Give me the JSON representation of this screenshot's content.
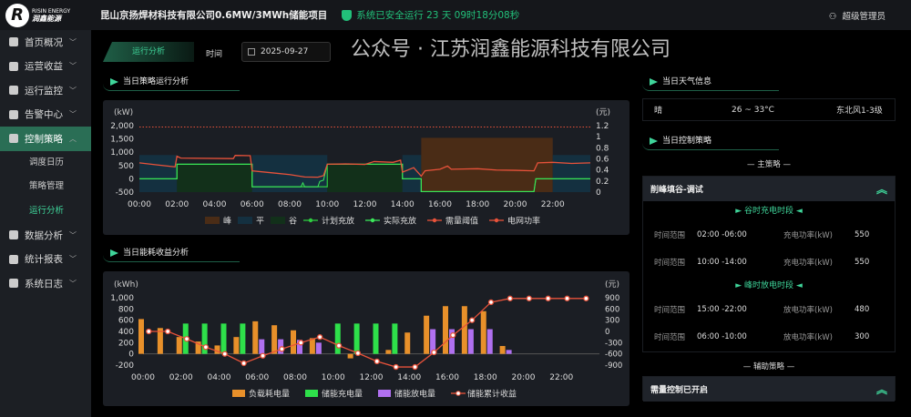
{
  "header": {
    "logo_text": "RISIN ENERGY",
    "logo_cn": "润鑫能源",
    "project": "昆山京扬焊材科技有限公司0.6MW/3MWh储能项目",
    "status": "系统已安全运行 23 天 09时18分08秒",
    "user": "超级管理员"
  },
  "sidebar": {
    "items": [
      {
        "label": "首页概况",
        "icon": "home-icon"
      },
      {
        "label": "运营收益",
        "icon": "money-bag-icon"
      },
      {
        "label": "运行监控",
        "icon": "monitor-icon"
      },
      {
        "label": "告警中心",
        "icon": "bell-icon"
      },
      {
        "label": "控制策略",
        "icon": "wave-icon",
        "active": true,
        "children": [
          {
            "label": "调度日历"
          },
          {
            "label": "策略管理"
          },
          {
            "label": "运行分析",
            "active": true
          }
        ]
      },
      {
        "label": "数据分析",
        "icon": "chart-icon"
      },
      {
        "label": "统计报表",
        "icon": "report-icon"
      },
      {
        "label": "系统日志",
        "icon": "log-icon"
      }
    ]
  },
  "toolbar": {
    "tab": "运行分析",
    "time_label": "时间",
    "date": "2025-09-27"
  },
  "sections": {
    "strategy": "当日策略运行分析",
    "energy": "当日能耗收益分析",
    "weather": "当日天气信息",
    "control": "当日控制策略"
  },
  "weather": {
    "condition": "晴",
    "temp": "26 ~ 33°C",
    "wind": "东北风1-3级"
  },
  "control": {
    "main_label": "— 主策略 —",
    "strategy_name": "削峰填谷-调试",
    "valley_title": "► 谷时充电时段 ◄",
    "peak_title": "► 峰时放电时段 ◄",
    "valley_rows": [
      {
        "l": "时间范围",
        "v": "02:00 -06:00",
        "l2": "充电功率(kW)",
        "v2": "550"
      },
      {
        "l": "时间范围",
        "v": "10:00 -14:00",
        "l2": "充电功率(kW)",
        "v2": "550"
      }
    ],
    "peak_rows": [
      {
        "l": "时间范围",
        "v": "15:00 -22:00",
        "l2": "放电功率(kW)",
        "v2": "480"
      },
      {
        "l": "时间范围",
        "v": "06:00 -10:00",
        "l2": "放电功率(kW)",
        "v2": "300"
      }
    ],
    "aux_label": "— 辅助策略 —",
    "aux_name": "需量控制已开启"
  },
  "watermark": "公众号 · 江苏润鑫能源科技有限公司",
  "colors": {
    "accent": "#3fd59a",
    "peak": "#4a2c16",
    "flat": "#143040",
    "valley": "#12301a",
    "grid": "#e8523a",
    "charge": "#2ecc40",
    "load": "#e8902a",
    "store_charge": "#2ee04a",
    "store_discharge": "#b070f0"
  },
  "chart_data": [
    {
      "type": "line",
      "ylabel": "(kW)",
      "y2label": "(元)",
      "ylim": [
        -500,
        2000
      ],
      "yticks": [
        "2,000",
        "1,500",
        "1,000",
        "500",
        "0",
        "-500"
      ],
      "y2lim": [
        0,
        1.2
      ],
      "y2ticks": [
        "1.2",
        "1",
        "0.8",
        "0.6",
        "0.4",
        "0.2",
        "0"
      ],
      "xticks": [
        "00:00",
        "02:00",
        "04:00",
        "06:00",
        "08:00",
        "10:00",
        "12:00",
        "14:00",
        "16:00",
        "18:00",
        "20:00",
        "22:00"
      ],
      "legend": [
        "峰",
        "平",
        "谷",
        "计划充放",
        "实际充放",
        "需量阈值",
        "电网功率"
      ],
      "price_bands": [
        {
          "type": "平",
          "from": 0,
          "to": 2,
          "price": 0.67
        },
        {
          "type": "谷",
          "from": 2,
          "to": 6,
          "price": 0.5
        },
        {
          "type": "平",
          "from": 6,
          "to": 10,
          "price": 0.67
        },
        {
          "type": "谷",
          "from": 10,
          "to": 14,
          "price": 0.5
        },
        {
          "type": "平",
          "from": 14,
          "to": 15,
          "price": 0.67
        },
        {
          "type": "峰",
          "from": 15,
          "to": 22,
          "price": 0.98
        },
        {
          "type": "平",
          "from": 22,
          "to": 24,
          "price": 0.67
        }
      ],
      "demand_threshold": 1950,
      "plan": [
        [
          0,
          0
        ],
        [
          2,
          0
        ],
        [
          2,
          550
        ],
        [
          6,
          550
        ],
        [
          6,
          -300
        ],
        [
          10,
          -300
        ],
        [
          10,
          550
        ],
        [
          14,
          550
        ],
        [
          14,
          0
        ],
        [
          15,
          0
        ],
        [
          15,
          -480
        ],
        [
          21,
          -480
        ],
        [
          21.1,
          0
        ],
        [
          24,
          0
        ]
      ],
      "actual": [
        [
          0,
          0
        ],
        [
          2,
          0
        ],
        [
          2,
          550
        ],
        [
          6,
          550
        ],
        [
          6,
          -300
        ],
        [
          8.6,
          -300
        ],
        [
          8.7,
          -150
        ],
        [
          8.8,
          -300
        ],
        [
          9.5,
          -300
        ],
        [
          9.6,
          -100
        ],
        [
          9.8,
          -50
        ],
        [
          10,
          550
        ],
        [
          14,
          550
        ],
        [
          14,
          0
        ],
        [
          15,
          0
        ],
        [
          15,
          -480
        ],
        [
          21,
          -480
        ],
        [
          21.1,
          0
        ],
        [
          24,
          0
        ]
      ],
      "grid_power": [
        [
          0,
          600
        ],
        [
          1,
          520
        ],
        [
          1.9,
          450
        ],
        [
          2,
          850
        ],
        [
          2.2,
          780
        ],
        [
          5,
          760
        ],
        [
          5.1,
          880
        ],
        [
          5.9,
          870
        ],
        [
          6,
          300
        ],
        [
          7,
          230
        ],
        [
          8,
          160
        ],
        [
          8.8,
          70
        ],
        [
          9.5,
          60
        ],
        [
          9.8,
          120
        ],
        [
          10,
          550
        ],
        [
          11,
          560
        ],
        [
          12,
          540
        ],
        [
          12.5,
          650
        ],
        [
          13.5,
          620
        ],
        [
          13.9,
          700
        ],
        [
          14,
          250
        ],
        [
          14.6,
          420
        ],
        [
          15,
          100
        ],
        [
          15.2,
          300
        ],
        [
          16,
          360
        ],
        [
          16.4,
          480
        ],
        [
          16.6,
          360
        ],
        [
          18,
          380
        ],
        [
          19,
          330
        ],
        [
          20,
          320
        ],
        [
          21,
          300
        ],
        [
          21.2,
          600
        ],
        [
          22,
          620
        ],
        [
          23,
          580
        ],
        [
          24,
          600
        ]
      ]
    },
    {
      "type": "bar",
      "ylabel": "(kWh)",
      "y2label": "(元)",
      "ylim": [
        -200,
        1000
      ],
      "yticks": [
        "1,000",
        "800",
        "600",
        "400",
        "200",
        "0",
        "-200"
      ],
      "y2lim": [
        -900,
        900
      ],
      "y2ticks": [
        "900",
        "600",
        "300",
        "0",
        "-300",
        "-600",
        "-900"
      ],
      "xticks": [
        "00:00",
        "02:00",
        "04:00",
        "06:00",
        "08:00",
        "10:00",
        "12:00",
        "14:00",
        "16:00",
        "18:00",
        "20:00",
        "22:00"
      ],
      "legend": [
        "负载耗电量",
        "储能充电量",
        "储能放电量",
        "储能累计收益"
      ],
      "hours": [
        0,
        1,
        2,
        3,
        4,
        5,
        6,
        7,
        8,
        9,
        10,
        11,
        12,
        13,
        14,
        15,
        16,
        17,
        18,
        19,
        20,
        21,
        22,
        23
      ],
      "series": [
        {
          "name": "负载耗电量",
          "values": [
            620,
            460,
            300,
            220,
            150,
            300,
            580,
            510,
            420,
            280,
            0,
            -80,
            0,
            70,
            380,
            680,
            850,
            850,
            760,
            140,
            0,
            0,
            0,
            0
          ]
        },
        {
          "name": "储能充电量",
          "values": [
            0,
            0,
            540,
            540,
            540,
            540,
            0,
            0,
            0,
            0,
            540,
            540,
            540,
            540,
            0,
            0,
            0,
            0,
            0,
            0,
            0,
            0,
            0,
            0
          ]
        },
        {
          "name": "储能放电量",
          "values": [
            0,
            0,
            0,
            0,
            0,
            0,
            260,
            260,
            250,
            200,
            0,
            0,
            0,
            0,
            0,
            440,
            440,
            440,
            440,
            70,
            0,
            0,
            0,
            0
          ]
        },
        {
          "name": "储能累计收益",
          "values": [
            0,
            0,
            -200,
            -420,
            -600,
            -850,
            -650,
            -470,
            -300,
            -150,
            -380,
            -580,
            -800,
            -950,
            -950,
            -560,
            -100,
            300,
            780,
            880,
            880,
            880,
            880,
            880
          ]
        }
      ]
    }
  ]
}
